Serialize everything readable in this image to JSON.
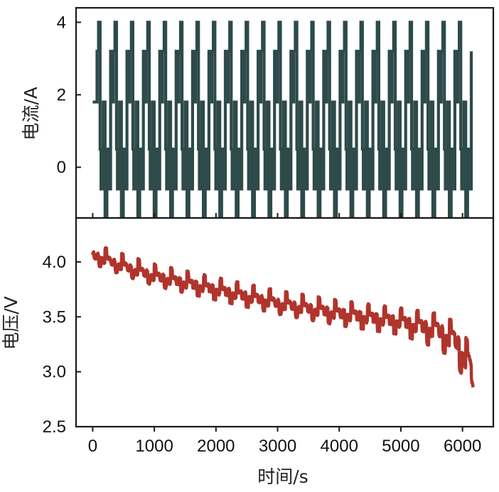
{
  "chart_data": [
    {
      "type": "line",
      "panel": "top",
      "title": "",
      "ylabel": "电流/A",
      "xlabel": "",
      "xlim": [
        -270,
        6500
      ],
      "ylim": [
        -1.4,
        4.4
      ],
      "yticks": [
        0,
        2,
        4
      ],
      "color": "#2e4a4a",
      "pulse_cycle": {
        "period_s": 266,
        "start_s": 40,
        "end_s": 6150,
        "profile": [
          {
            "dt": 0,
            "current": 1.8
          },
          {
            "dt": 30,
            "current": 3.2
          },
          {
            "dt": 55,
            "current": 4.0
          },
          {
            "dt": 80,
            "current": 0.5
          },
          {
            "dt": 95,
            "current": -0.6
          },
          {
            "dt": 130,
            "current": 1.8
          },
          {
            "dt": 160,
            "current": -1.4
          },
          {
            "dt": 190,
            "current": 0.5
          },
          {
            "dt": 225,
            "current": -0.6
          },
          {
            "dt": 250,
            "current": 3.2
          }
        ]
      }
    },
    {
      "type": "line",
      "panel": "bottom",
      "title": "",
      "ylabel": "电压/V",
      "xlabel": "时间/s",
      "xlim": [
        -270,
        6500
      ],
      "ylim": [
        2.5,
        4.4
      ],
      "yticks": [
        2.5,
        3.0,
        3.5,
        4.0
      ],
      "yticklabels": [
        "2.5",
        "3.0",
        "3.5",
        "4.0"
      ],
      "xticks": [
        0,
        1000,
        2000,
        3000,
        4000,
        5000,
        6000
      ],
      "color": "#b0342c",
      "baseline": [
        {
          "t": 0,
          "v": 4.1
        },
        {
          "t": 500,
          "v": 4.0
        },
        {
          "t": 1000,
          "v": 3.91
        },
        {
          "t": 2000,
          "v": 3.79
        },
        {
          "t": 3000,
          "v": 3.67
        },
        {
          "t": 4000,
          "v": 3.58
        },
        {
          "t": 5000,
          "v": 3.51
        },
        {
          "t": 5600,
          "v": 3.46
        },
        {
          "t": 5900,
          "v": 3.38
        },
        {
          "t": 6100,
          "v": 3.2
        },
        {
          "t": 6170,
          "v": 3.05
        }
      ],
      "dip_depth": [
        {
          "t": 0,
          "d": 0.12
        },
        {
          "t": 3000,
          "d": 0.15
        },
        {
          "t": 5000,
          "d": 0.18
        },
        {
          "t": 5700,
          "d": 0.28
        },
        {
          "t": 6170,
          "d": 0.4
        }
      ]
    }
  ]
}
